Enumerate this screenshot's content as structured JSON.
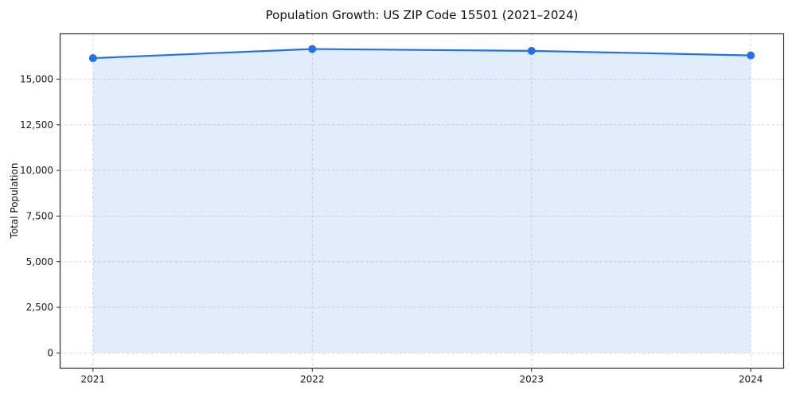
{
  "chart_data": {
    "type": "area",
    "title": "Population Growth: US ZIP Code 15501 (2021–2024)",
    "xlabel": "",
    "ylabel": "Total Population",
    "x": [
      2021,
      2022,
      2023,
      2024
    ],
    "xtick_labels": [
      "2021",
      "2022",
      "2023",
      "2024"
    ],
    "series": [
      {
        "name": "Total Population",
        "values": [
          16150,
          16650,
          16550,
          16300
        ]
      }
    ],
    "yticks": [
      0,
      2500,
      5000,
      7500,
      10000,
      12500,
      15000
    ],
    "ytick_labels": [
      "0",
      "2,500",
      "5,000",
      "7,500",
      "10,000",
      "12,500",
      "15,000"
    ],
    "ylim": [
      -832,
      17482
    ],
    "grid": true,
    "legend_position": "none",
    "line_color": "#2172e8",
    "marker_color": "#2172e8",
    "fill_color": "rgba(33,114,232,0.13)",
    "grid_color": "#d3d3d3",
    "axis_color": "#2b2b2b",
    "tick_label_color": "#1a1a1a"
  }
}
